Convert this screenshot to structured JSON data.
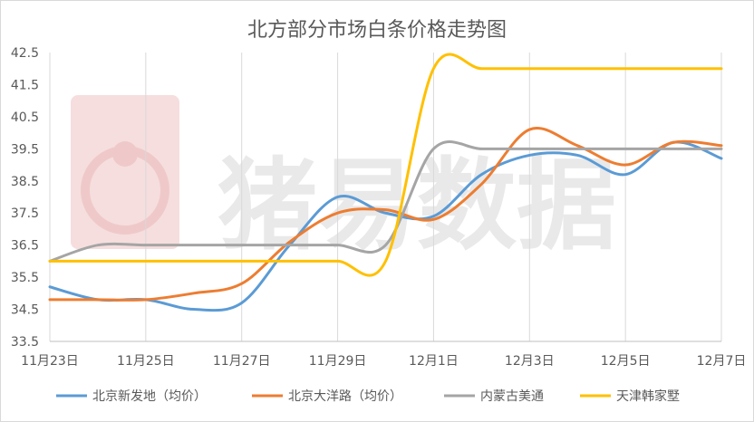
{
  "chart_data": {
    "type": "line",
    "title": "北方部分市场白条价格走势图",
    "xlabel": "",
    "ylabel": "",
    "watermark": "猪易数据",
    "ylim": [
      33.5,
      42.5
    ],
    "yticks": [
      "33.5",
      "34.5",
      "35.5",
      "36.5",
      "37.5",
      "38.5",
      "39.5",
      "40.5",
      "41.5",
      "42.5"
    ],
    "xlim": [
      0,
      14
    ],
    "xticks": [
      {
        "x": 0,
        "label": "11月23日"
      },
      {
        "x": 2,
        "label": "11月25日"
      },
      {
        "x": 4,
        "label": "11月27日"
      },
      {
        "x": 6,
        "label": "11月29日"
      },
      {
        "x": 8,
        "label": "12月1日"
      },
      {
        "x": 10,
        "label": "12月3日"
      },
      {
        "x": 12,
        "label": "12月5日"
      },
      {
        "x": 14,
        "label": "12月7日"
      }
    ],
    "legend_position": "bottom",
    "grid": "vertical",
    "series": [
      {
        "name": "北京新发地（均价）",
        "color": "#5b9bd5",
        "values": [
          35.2,
          34.8,
          34.8,
          34.5,
          34.7,
          36.5,
          38.0,
          37.5,
          37.4,
          38.7,
          39.3,
          39.3,
          38.7,
          39.7,
          39.2
        ]
      },
      {
        "name": "北京大洋路（均价）",
        "color": "#ed7d31",
        "values": [
          34.8,
          34.8,
          34.8,
          35.0,
          35.3,
          36.6,
          37.5,
          37.6,
          37.3,
          38.4,
          40.1,
          39.6,
          39.0,
          39.7,
          39.6
        ]
      },
      {
        "name": "内蒙古美通",
        "color": "#a5a5a5",
        "values": [
          36.0,
          36.5,
          36.5,
          36.5,
          36.5,
          36.5,
          36.5,
          36.5,
          39.5,
          39.5,
          39.5,
          39.5,
          39.5,
          39.5,
          39.5
        ]
      },
      {
        "name": "天津韩家墅",
        "color": "#ffc000",
        "values": [
          36.0,
          36.0,
          36.0,
          36.0,
          36.0,
          36.0,
          36.0,
          36.0,
          42.0,
          42.0,
          42.0,
          42.0,
          42.0,
          42.0,
          42.0
        ]
      }
    ]
  }
}
